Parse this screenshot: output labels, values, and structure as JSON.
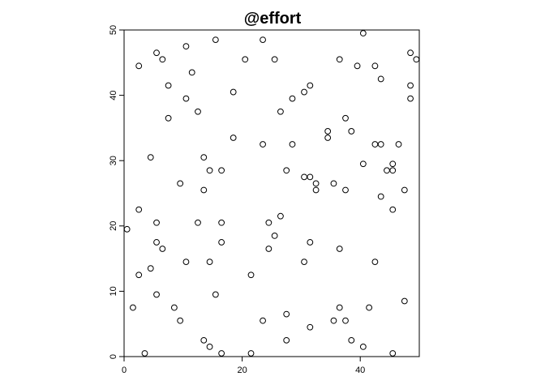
{
  "chart_data": {
    "type": "scatter",
    "title": "@effort",
    "xlabel": "",
    "ylabel": "",
    "xlim": [
      0,
      50
    ],
    "ylim": [
      0,
      50
    ],
    "xticks": [
      0,
      20,
      40
    ],
    "yticks": [
      0,
      10,
      20,
      30,
      40,
      50
    ],
    "grid": false,
    "points": [
      {
        "x": 0.5,
        "y": 19.5
      },
      {
        "x": 1.5,
        "y": 7.5
      },
      {
        "x": 2.5,
        "y": 44.5
      },
      {
        "x": 2.5,
        "y": 22.5
      },
      {
        "x": 2.5,
        "y": 12.5
      },
      {
        "x": 3.5,
        "y": 0.5
      },
      {
        "x": 4.5,
        "y": 30.5
      },
      {
        "x": 4.5,
        "y": 13.5
      },
      {
        "x": 5.5,
        "y": 46.5
      },
      {
        "x": 5.5,
        "y": 20.5
      },
      {
        "x": 5.5,
        "y": 17.5
      },
      {
        "x": 5.5,
        "y": 9.5
      },
      {
        "x": 6.5,
        "y": 45.5
      },
      {
        "x": 6.5,
        "y": 16.5
      },
      {
        "x": 7.5,
        "y": 41.5
      },
      {
        "x": 7.5,
        "y": 36.5
      },
      {
        "x": 8.5,
        "y": 7.5
      },
      {
        "x": 9.5,
        "y": 26.5
      },
      {
        "x": 9.5,
        "y": 5.5
      },
      {
        "x": 10.5,
        "y": 47.5
      },
      {
        "x": 10.5,
        "y": 39.5
      },
      {
        "x": 10.5,
        "y": 14.5
      },
      {
        "x": 11.5,
        "y": 43.5
      },
      {
        "x": 12.5,
        "y": 37.5
      },
      {
        "x": 12.5,
        "y": 20.5
      },
      {
        "x": 13.5,
        "y": 30.5
      },
      {
        "x": 13.5,
        "y": 25.5
      },
      {
        "x": 13.5,
        "y": 2.5
      },
      {
        "x": 14.5,
        "y": 28.5
      },
      {
        "x": 14.5,
        "y": 14.5
      },
      {
        "x": 14.5,
        "y": 1.5
      },
      {
        "x": 15.5,
        "y": 48.5
      },
      {
        "x": 15.5,
        "y": 9.5
      },
      {
        "x": 16.5,
        "y": 28.5
      },
      {
        "x": 16.5,
        "y": 20.5
      },
      {
        "x": 16.5,
        "y": 17.5
      },
      {
        "x": 16.5,
        "y": 0.5
      },
      {
        "x": 18.5,
        "y": 40.5
      },
      {
        "x": 18.5,
        "y": 33.5
      },
      {
        "x": 20.5,
        "y": 45.5
      },
      {
        "x": 21.5,
        "y": 12.5
      },
      {
        "x": 21.5,
        "y": 0.5
      },
      {
        "x": 23.5,
        "y": 48.5
      },
      {
        "x": 23.5,
        "y": 32.5
      },
      {
        "x": 23.5,
        "y": 5.5
      },
      {
        "x": 24.5,
        "y": 20.5
      },
      {
        "x": 24.5,
        "y": 16.5
      },
      {
        "x": 25.5,
        "y": 45.5
      },
      {
        "x": 25.5,
        "y": 18.5
      },
      {
        "x": 26.5,
        "y": 37.5
      },
      {
        "x": 26.5,
        "y": 21.5
      },
      {
        "x": 27.5,
        "y": 28.5
      },
      {
        "x": 27.5,
        "y": 6.5
      },
      {
        "x": 27.5,
        "y": 2.5
      },
      {
        "x": 28.5,
        "y": 39.5
      },
      {
        "x": 28.5,
        "y": 32.5
      },
      {
        "x": 30.5,
        "y": 40.5
      },
      {
        "x": 30.5,
        "y": 27.5
      },
      {
        "x": 30.5,
        "y": 14.5
      },
      {
        "x": 31.5,
        "y": 41.5
      },
      {
        "x": 31.5,
        "y": 27.5
      },
      {
        "x": 31.5,
        "y": 17.5
      },
      {
        "x": 31.5,
        "y": 4.5
      },
      {
        "x": 32.5,
        "y": 26.5
      },
      {
        "x": 32.5,
        "y": 25.5
      },
      {
        "x": 34.5,
        "y": 34.5
      },
      {
        "x": 34.5,
        "y": 33.5
      },
      {
        "x": 35.5,
        "y": 26.5
      },
      {
        "x": 35.5,
        "y": 5.5
      },
      {
        "x": 36.5,
        "y": 45.5
      },
      {
        "x": 36.5,
        "y": 16.5
      },
      {
        "x": 36.5,
        "y": 7.5
      },
      {
        "x": 37.5,
        "y": 36.5
      },
      {
        "x": 37.5,
        "y": 25.5
      },
      {
        "x": 37.5,
        "y": 5.5
      },
      {
        "x": 38.5,
        "y": 34.5
      },
      {
        "x": 38.5,
        "y": 2.5
      },
      {
        "x": 39.5,
        "y": 44.5
      },
      {
        "x": 40.5,
        "y": 49.5
      },
      {
        "x": 40.5,
        "y": 29.5
      },
      {
        "x": 40.5,
        "y": 1.5
      },
      {
        "x": 41.5,
        "y": 7.5
      },
      {
        "x": 42.5,
        "y": 44.5
      },
      {
        "x": 42.5,
        "y": 32.5
      },
      {
        "x": 42.5,
        "y": 14.5
      },
      {
        "x": 43.5,
        "y": 42.5
      },
      {
        "x": 43.5,
        "y": 32.5
      },
      {
        "x": 43.5,
        "y": 24.5
      },
      {
        "x": 44.5,
        "y": 28.5
      },
      {
        "x": 45.5,
        "y": 29.5
      },
      {
        "x": 45.5,
        "y": 28.5
      },
      {
        "x": 45.5,
        "y": 22.5
      },
      {
        "x": 45.5,
        "y": 0.5
      },
      {
        "x": 46.5,
        "y": 32.5
      },
      {
        "x": 47.5,
        "y": 25.5
      },
      {
        "x": 47.5,
        "y": 8.5
      },
      {
        "x": 48.5,
        "y": 46.5
      },
      {
        "x": 48.5,
        "y": 41.5
      },
      {
        "x": 48.5,
        "y": 39.5
      },
      {
        "x": 49.5,
        "y": 45.5
      }
    ]
  }
}
